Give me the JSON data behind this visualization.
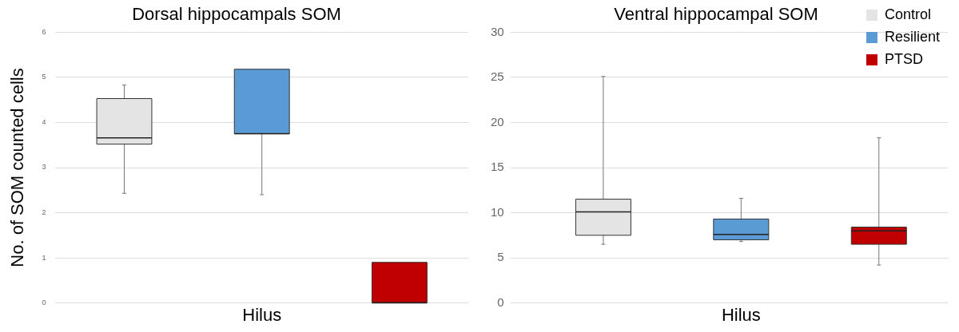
{
  "chart_data": [
    {
      "type": "box",
      "title": "Dorsal hippocampals SOM",
      "ylabel": "No. of SOM counted cells",
      "categories": [
        "Hilus"
      ],
      "ylim": [
        0,
        6
      ],
      "yticks": [
        0,
        1,
        2,
        3,
        4,
        5,
        6
      ],
      "grid": "y",
      "legend": false,
      "series": [
        {
          "color": "#e4e4e4",
          "boxes": [
            {
              "low": 2.43,
              "q1": 3.52,
              "median": 3.66,
              "q3": 4.53,
              "high": 4.83
            }
          ]
        },
        {
          "color": "#5b9bd5",
          "boxes": [
            {
              "low": 2.4,
              "q1": 3.75,
              "median": 3.75,
              "q3": 5.18,
              "high": 5.18
            }
          ]
        },
        {
          "color": "#c00000",
          "boxes": [
            {
              "low": 0,
              "q1": 0,
              "median": 0,
              "q3": 0.9,
              "high": 0.9
            }
          ]
        }
      ]
    },
    {
      "type": "box",
      "title": "Ventral hippocampal SOM",
      "categories": [
        "Hilus"
      ],
      "ylim": [
        0,
        30
      ],
      "yticks": [
        0,
        5,
        10,
        15,
        20,
        25,
        30
      ],
      "grid": "y",
      "legend": "top right",
      "series": [
        {
          "name": "Control",
          "color": "#e4e4e4",
          "boxes": [
            {
              "low": 6.5,
              "q1": 7.5,
              "median": 10.1,
              "q3": 11.5,
              "high": 25.1
            }
          ]
        },
        {
          "name": "Resilient",
          "color": "#5b9bd5",
          "boxes": [
            {
              "low": 6.8,
              "q1": 7.0,
              "median": 7.6,
              "q3": 9.3,
              "high": 11.6
            }
          ]
        },
        {
          "name": "PTSD",
          "color": "#c00000",
          "boxes": [
            {
              "low": 4.2,
              "q1": 6.5,
              "median": 8.0,
              "q3": 8.4,
              "high": 18.3
            }
          ]
        }
      ]
    }
  ]
}
